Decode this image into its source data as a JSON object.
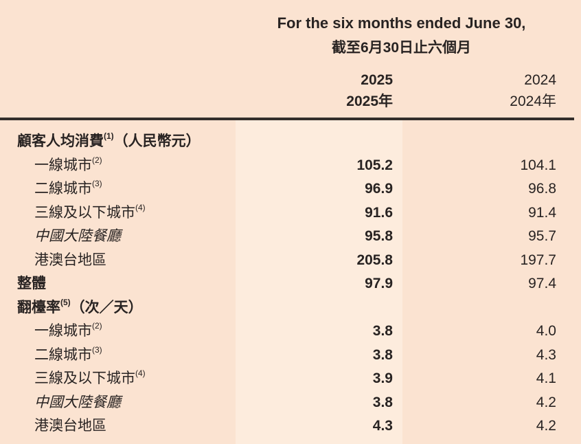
{
  "page": {
    "background_color": "#fbe3d1",
    "band_color": "#fdecdd",
    "text_color": "#282322",
    "rule_color": "#332e2b"
  },
  "header": {
    "title_en": "For the six months ended June 30,",
    "title_zh": "截至6月30日止六個月",
    "col_2025": {
      "line1": "2025",
      "line2": "2025年"
    },
    "col_2024": {
      "line1": "2024",
      "line2": "2024年"
    }
  },
  "table": {
    "rows": [
      {
        "style": "section",
        "label": "顧客人均消費",
        "sup": "(1)",
        "suffix": "（人民幣元）",
        "v2025": "",
        "v2024": ""
      },
      {
        "style": "item",
        "label": "一線城市",
        "sup": "(2)",
        "suffix": "",
        "v2025": "105.2",
        "v2024": "104.1"
      },
      {
        "style": "item",
        "label": "二線城市",
        "sup": "(3)",
        "suffix": "",
        "v2025": "96.9",
        "v2024": "96.8"
      },
      {
        "style": "item",
        "label": "三線及以下城市",
        "sup": "(4)",
        "suffix": "",
        "v2025": "91.6",
        "v2024": "91.4"
      },
      {
        "style": "item-italic",
        "label": "中國大陸餐廳",
        "sup": "",
        "suffix": "",
        "v2025": "95.8",
        "v2024": "95.7"
      },
      {
        "style": "item",
        "label": "港澳台地區",
        "sup": "",
        "suffix": "",
        "v2025": "205.8",
        "v2024": "197.7"
      },
      {
        "style": "section",
        "label": "整體",
        "sup": "",
        "suffix": "",
        "v2025": "97.9",
        "v2024": "97.4"
      },
      {
        "style": "section",
        "label": "翻檯率",
        "sup": "(5)",
        "suffix": "（次／天）",
        "v2025": "",
        "v2024": ""
      },
      {
        "style": "item",
        "label": "一線城市",
        "sup": "(2)",
        "suffix": "",
        "v2025": "3.8",
        "v2024": "4.0"
      },
      {
        "style": "item",
        "label": "二線城市",
        "sup": "(3)",
        "suffix": "",
        "v2025": "3.8",
        "v2024": "4.3"
      },
      {
        "style": "item",
        "label": "三線及以下城市",
        "sup": "(4)",
        "suffix": "",
        "v2025": "3.9",
        "v2024": "4.1"
      },
      {
        "style": "item-italic",
        "label": "中國大陸餐廳",
        "sup": "",
        "suffix": "",
        "v2025": "3.8",
        "v2024": "4.2"
      },
      {
        "style": "item",
        "label": "港澳台地區",
        "sup": "",
        "suffix": "",
        "v2025": "4.3",
        "v2024": "4.2"
      }
    ]
  }
}
